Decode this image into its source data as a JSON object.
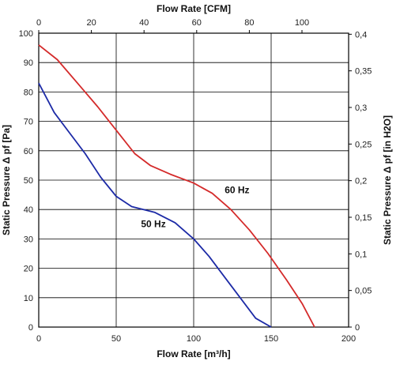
{
  "chart_data": {
    "type": "line",
    "xlabel_bottom": "Flow Rate [m³/h]",
    "xlabel_top": "Flow Rate [CFM]",
    "ylabel_left": "Static Pressure Δ pf [Pa]",
    "ylabel_right": "Static Pressure Δ pf [in H2O]",
    "xlim": [
      0,
      200
    ],
    "ylim": [
      0,
      100
    ],
    "x_ticks": [
      "0",
      "50",
      "100",
      "150",
      "200"
    ],
    "y_ticks": [
      "0",
      "10",
      "20",
      "30",
      "40",
      "50",
      "60",
      "70",
      "80",
      "90",
      "100"
    ],
    "top_ticks": [
      "0",
      "20",
      "40",
      "60",
      "80",
      "100"
    ],
    "right_ticks": [
      "0",
      "0,05",
      "0,1",
      "0,15",
      "0,2",
      "0,25",
      "0,3",
      "0,35",
      "0,4"
    ],
    "grid": true,
    "series": [
      {
        "name": "60 Hz",
        "color": "#d42a2a",
        "label_at": [
          120,
          45.5
        ],
        "points": [
          [
            0,
            96
          ],
          [
            12,
            91
          ],
          [
            25,
            83
          ],
          [
            38,
            75
          ],
          [
            50,
            67
          ],
          [
            62,
            59
          ],
          [
            72,
            55
          ],
          [
            85,
            52
          ],
          [
            100,
            49
          ],
          [
            112,
            45.5
          ],
          [
            124,
            40
          ],
          [
            136,
            33
          ],
          [
            148,
            25
          ],
          [
            160,
            16
          ],
          [
            170,
            8
          ],
          [
            178,
            0
          ]
        ]
      },
      {
        "name": "50 Hz",
        "color": "#1c2aa6",
        "label_at": [
          66,
          34
        ],
        "points": [
          [
            0,
            83
          ],
          [
            10,
            73
          ],
          [
            20,
            66
          ],
          [
            30,
            59
          ],
          [
            40,
            51
          ],
          [
            50,
            44.5
          ],
          [
            60,
            41
          ],
          [
            75,
            39
          ],
          [
            88,
            35.5
          ],
          [
            100,
            30
          ],
          [
            110,
            24
          ],
          [
            120,
            17
          ],
          [
            130,
            10
          ],
          [
            140,
            3
          ],
          [
            150,
            0
          ]
        ]
      }
    ]
  }
}
